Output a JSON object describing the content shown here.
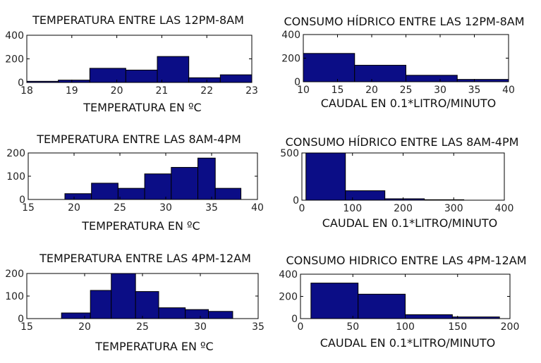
{
  "chart_data": [
    {
      "type": "bar",
      "title": "TEMPERATURA ENTRE LAS 12PM-8AM",
      "xlabel": "TEMPERATURA EN ºC",
      "xlim": [
        18,
        23
      ],
      "ylim": [
        0,
        400
      ],
      "xticks": [
        18,
        19,
        20,
        21,
        22,
        23
      ],
      "yticks": [
        0,
        200,
        400
      ],
      "bins": [
        {
          "x0": 18.0,
          "x1": 18.7,
          "value": 10
        },
        {
          "x0": 18.7,
          "x1": 19.4,
          "value": 20
        },
        {
          "x0": 19.4,
          "x1": 20.2,
          "value": 120
        },
        {
          "x0": 20.2,
          "x1": 20.9,
          "value": 105
        },
        {
          "x0": 20.9,
          "x1": 21.6,
          "value": 220
        },
        {
          "x0": 21.6,
          "x1": 22.3,
          "value": 40
        },
        {
          "x0": 22.3,
          "x1": 23.0,
          "value": 65
        }
      ]
    },
    {
      "type": "bar",
      "title": "CONSUMO HÍDRICO ENTRE LAS 12PM-8AM",
      "xlabel": "CAUDAL EN 0.1*LITRO/MINUTO",
      "xlim": [
        10,
        40
      ],
      "ylim": [
        0,
        400
      ],
      "xticks": [
        10,
        15,
        20,
        25,
        30,
        35,
        40
      ],
      "yticks": [
        0,
        200,
        400
      ],
      "bins": [
        {
          "x0": 10,
          "x1": 17.5,
          "value": 240
        },
        {
          "x0": 17.5,
          "x1": 25,
          "value": 140
        },
        {
          "x0": 25,
          "x1": 32.5,
          "value": 55
        },
        {
          "x0": 32.5,
          "x1": 40,
          "value": 20
        }
      ]
    },
    {
      "type": "bar",
      "title": "TEMPERATURA ENTRE LAS 8AM-4PM",
      "xlabel": "TEMPERATURA EN ºC",
      "xlim": [
        15,
        40
      ],
      "ylim": [
        0,
        200
      ],
      "xticks": [
        15,
        20,
        25,
        30,
        35,
        40
      ],
      "yticks": [
        0,
        100,
        200
      ],
      "bins": [
        {
          "x0": 19.0,
          "x1": 21.9,
          "value": 25
        },
        {
          "x0": 21.9,
          "x1": 24.8,
          "value": 70
        },
        {
          "x0": 24.8,
          "x1": 27.7,
          "value": 48
        },
        {
          "x0": 27.7,
          "x1": 30.6,
          "value": 110
        },
        {
          "x0": 30.6,
          "x1": 33.5,
          "value": 138
        },
        {
          "x0": 33.5,
          "x1": 35.4,
          "value": 178
        },
        {
          "x0": 35.4,
          "x1": 38.2,
          "value": 48
        }
      ]
    },
    {
      "type": "bar",
      "title": "CONSUMO HÍDRICO ENTRE LAS 8AM-4PM",
      "xlabel": "CAUDAL EN 0.1*LITRO/MINUTO",
      "xlim": [
        0,
        400
      ],
      "ylim": [
        0,
        500
      ],
      "xticks": [
        0,
        100,
        200,
        300,
        400
      ],
      "yticks": [
        0,
        500
      ],
      "bins": [
        {
          "x0": 8,
          "x1": 86,
          "value": 500
        },
        {
          "x0": 86,
          "x1": 164,
          "value": 100
        },
        {
          "x0": 164,
          "x1": 242,
          "value": 15
        },
        {
          "x0": 242,
          "x1": 320,
          "value": 5
        }
      ]
    },
    {
      "type": "bar",
      "title": "TEMPERATURA ENTRE LAS 4PM-12AM",
      "xlabel": "TEMPERATURA EN ºC",
      "xlim": [
        15,
        35
      ],
      "ylim": [
        0,
        200
      ],
      "xticks": [
        15,
        20,
        25,
        30,
        35
      ],
      "yticks": [
        0,
        100,
        200
      ],
      "bins": [
        {
          "x0": 18.0,
          "x1": 20.5,
          "value": 25
        },
        {
          "x0": 20.5,
          "x1": 22.3,
          "value": 125
        },
        {
          "x0": 22.3,
          "x1": 24.4,
          "value": 200
        },
        {
          "x0": 24.4,
          "x1": 26.4,
          "value": 120
        },
        {
          "x0": 26.4,
          "x1": 28.7,
          "value": 48
        },
        {
          "x0": 28.7,
          "x1": 30.7,
          "value": 40
        },
        {
          "x0": 30.7,
          "x1": 32.8,
          "value": 32
        }
      ]
    },
    {
      "type": "bar",
      "title": "CONSUMO HIDRICO ENTRE LAS 4PM-12AM",
      "xlabel": "CAUDAL EN 0.1*LITRO/MINUTO",
      "xlim": [
        0,
        200
      ],
      "ylim": [
        0,
        400
      ],
      "xticks": [
        0,
        50,
        100,
        150,
        200
      ],
      "yticks": [
        0,
        200,
        400
      ],
      "bins": [
        {
          "x0": 10,
          "x1": 55,
          "value": 320
        },
        {
          "x0": 55,
          "x1": 100,
          "value": 220
        },
        {
          "x0": 100,
          "x1": 145,
          "value": 35
        },
        {
          "x0": 145,
          "x1": 190,
          "value": 15
        }
      ]
    }
  ]
}
